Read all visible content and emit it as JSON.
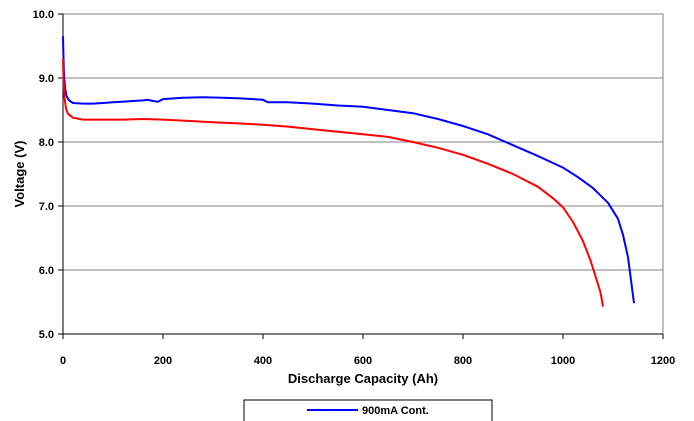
{
  "chart_data": {
    "type": "line",
    "title": "",
    "xlabel": "Discharge Capacity (Ah)",
    "ylabel": "Voltage (V)",
    "xlim": [
      0,
      1200
    ],
    "ylim": [
      5.0,
      10.0
    ],
    "xticks": [
      0,
      200,
      400,
      600,
      800,
      1000,
      1200
    ],
    "xtick_labels": [
      "0",
      "200",
      "400",
      "600",
      "800",
      "1000",
      "1200"
    ],
    "yticks": [
      5.0,
      6.0,
      7.0,
      8.0,
      9.0,
      10.0
    ],
    "ytick_labels": [
      "5.0",
      "6.0",
      "7.0",
      "8.0",
      "9.0",
      "10.0"
    ],
    "grid": {
      "horizontal": true,
      "vertical": false
    },
    "legend": {
      "placement": "bottom",
      "entries": [
        "900mA Cont."
      ]
    },
    "series": [
      {
        "name": "900mA Cont.",
        "color": "#0000ff",
        "points": [
          [
            0,
            9.65
          ],
          [
            1,
            9.3
          ],
          [
            2,
            9.05
          ],
          [
            4,
            8.85
          ],
          [
            7,
            8.72
          ],
          [
            12,
            8.65
          ],
          [
            20,
            8.61
          ],
          [
            40,
            8.6
          ],
          [
            60,
            8.6
          ],
          [
            80,
            8.61
          ],
          [
            100,
            8.62
          ],
          [
            140,
            8.64
          ],
          [
            160,
            8.65
          ],
          [
            170,
            8.66
          ],
          [
            180,
            8.64
          ],
          [
            190,
            8.63
          ],
          [
            200,
            8.67
          ],
          [
            240,
            8.69
          ],
          [
            280,
            8.7
          ],
          [
            320,
            8.69
          ],
          [
            360,
            8.68
          ],
          [
            400,
            8.66
          ],
          [
            410,
            8.62
          ],
          [
            450,
            8.62
          ],
          [
            500,
            8.6
          ],
          [
            550,
            8.57
          ],
          [
            600,
            8.55
          ],
          [
            650,
            8.5
          ],
          [
            700,
            8.45
          ],
          [
            750,
            8.36
          ],
          [
            800,
            8.25
          ],
          [
            850,
            8.12
          ],
          [
            900,
            7.95
          ],
          [
            950,
            7.78
          ],
          [
            1000,
            7.6
          ],
          [
            1030,
            7.45
          ],
          [
            1060,
            7.28
          ],
          [
            1090,
            7.05
          ],
          [
            1110,
            6.8
          ],
          [
            1120,
            6.55
          ],
          [
            1130,
            6.2
          ],
          [
            1135,
            5.9
          ],
          [
            1142,
            5.48
          ]
        ]
      },
      {
        "name": "",
        "color": "#ff0000",
        "points": [
          [
            0,
            9.3
          ],
          [
            1,
            9.0
          ],
          [
            3,
            8.7
          ],
          [
            6,
            8.52
          ],
          [
            10,
            8.44
          ],
          [
            20,
            8.38
          ],
          [
            40,
            8.35
          ],
          [
            80,
            8.35
          ],
          [
            120,
            8.35
          ],
          [
            160,
            8.36
          ],
          [
            200,
            8.35
          ],
          [
            250,
            8.33
          ],
          [
            300,
            8.31
          ],
          [
            350,
            8.29
          ],
          [
            400,
            8.27
          ],
          [
            450,
            8.24
          ],
          [
            500,
            8.2
          ],
          [
            550,
            8.16
          ],
          [
            600,
            8.12
          ],
          [
            650,
            8.08
          ],
          [
            700,
            8.0
          ],
          [
            750,
            7.91
          ],
          [
            800,
            7.8
          ],
          [
            850,
            7.66
          ],
          [
            900,
            7.5
          ],
          [
            950,
            7.3
          ],
          [
            980,
            7.12
          ],
          [
            1000,
            6.98
          ],
          [
            1020,
            6.75
          ],
          [
            1040,
            6.45
          ],
          [
            1055,
            6.15
          ],
          [
            1065,
            5.9
          ],
          [
            1075,
            5.65
          ],
          [
            1080,
            5.43
          ]
        ]
      }
    ]
  }
}
